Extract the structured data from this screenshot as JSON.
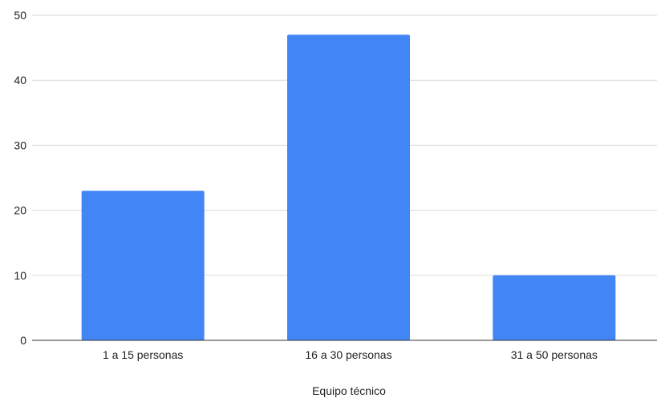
{
  "chart_data": {
    "type": "bar",
    "categories": [
      "1 a 15 personas",
      "16 a 30 personas",
      "31 a 50 personas"
    ],
    "values": [
      23,
      47,
      10
    ],
    "xlabel": "Equipo técnico",
    "ylabel": "",
    "ylim": [
      0,
      50
    ],
    "yticks": [
      "0",
      "10",
      "20",
      "30",
      "40",
      "50"
    ],
    "grid": true,
    "legend": "none",
    "colors": {
      "bar": "#4285f4",
      "grid": "#d9d9d9",
      "axis": "#333333",
      "text": "#222222"
    }
  }
}
